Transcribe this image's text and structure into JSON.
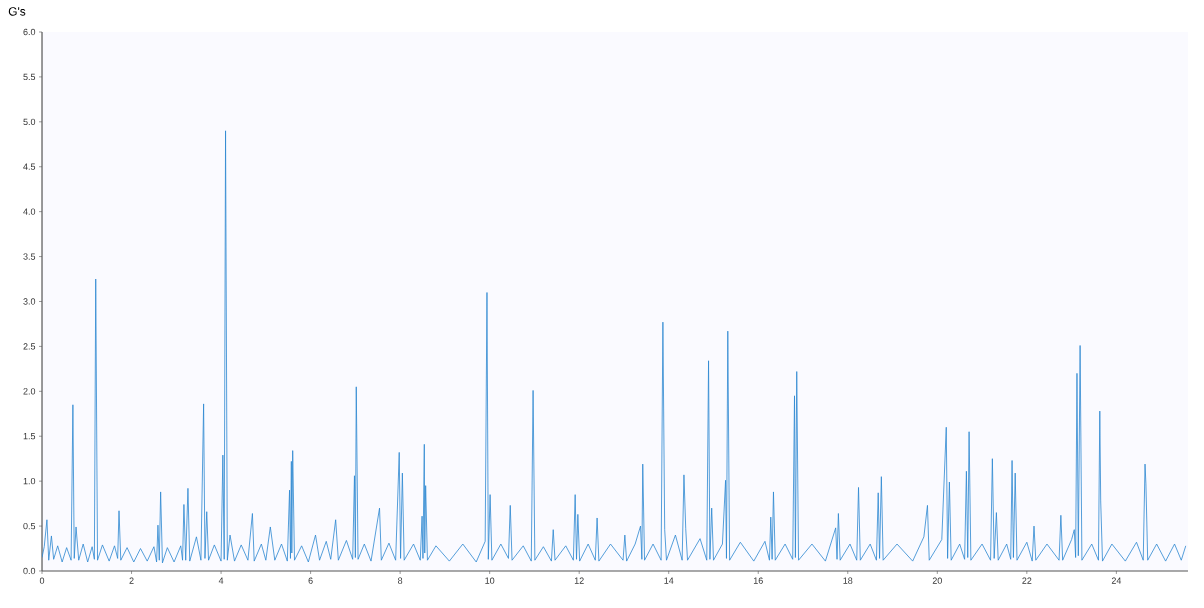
{
  "chart_data": {
    "type": "line",
    "ylabel": "G's",
    "color": "#2b87d1",
    "xlim": [
      0,
      25.6
    ],
    "ylim": [
      0,
      6
    ],
    "xticks": [
      0,
      2,
      4,
      6,
      8,
      10,
      12,
      14,
      16,
      18,
      20,
      22,
      24
    ],
    "yticks": [
      {
        "value": 0,
        "label": "0.0"
      },
      {
        "value": 0.5,
        "label": "0.5"
      },
      {
        "value": 1,
        "label": "1.0"
      },
      {
        "value": 1.5,
        "label": "1.5"
      },
      {
        "value": 2,
        "label": "2.0"
      },
      {
        "value": 2.5,
        "label": "2.5"
      },
      {
        "value": 3,
        "label": "3.0"
      },
      {
        "value": 3.5,
        "label": "3.5"
      },
      {
        "value": 4,
        "label": "4.0"
      },
      {
        "value": 4.5,
        "label": "4.5"
      },
      {
        "value": 5,
        "label": "5.0"
      },
      {
        "value": 5.5,
        "label": "5.5"
      },
      {
        "value": 6,
        "label": "6.0"
      }
    ],
    "x": [
      0,
      0.05,
      0.11,
      0.15,
      0.21,
      0.26,
      0.35,
      0.45,
      0.55,
      0.65,
      0.69,
      0.72,
      0.76,
      0.82,
      0.92,
      1.02,
      1.12,
      1.17,
      1.2,
      1.24,
      1.35,
      1.5,
      1.62,
      1.69,
      1.72,
      1.76,
      1.9,
      2.05,
      2.2,
      2.35,
      2.5,
      2.56,
      2.59,
      2.62,
      2.65,
      2.69,
      2.8,
      2.95,
      3.1,
      3.14,
      3.17,
      3.21,
      3.26,
      3.3,
      3.45,
      3.55,
      3.61,
      3.64,
      3.68,
      3.72,
      3.85,
      4.0,
      4.04,
      4.07,
      4.1,
      4.14,
      4.2,
      4.3,
      4.45,
      4.6,
      4.7,
      4.74,
      4.9,
      5.0,
      5.1,
      5.2,
      5.35,
      5.48,
      5.53,
      5.55,
      5.57,
      5.58,
      5.6,
      5.64,
      5.8,
      5.95,
      6.11,
      6.2,
      6.35,
      6.45,
      6.56,
      6.62,
      6.8,
      6.94,
      6.98,
      7.0,
      7.02,
      7.06,
      7.2,
      7.35,
      7.54,
      7.58,
      7.75,
      7.9,
      7.98,
      8.01,
      8.05,
      8.09,
      8.3,
      8.45,
      8.49,
      8.51,
      8.54,
      8.55,
      8.57,
      8.61,
      8.8,
      9.1,
      9.4,
      9.7,
      9.9,
      9.94,
      9.97,
      10.01,
      10.05,
      10.25,
      10.42,
      10.46,
      10.5,
      10.75,
      10.93,
      10.97,
      11.01,
      11.2,
      11.38,
      11.42,
      11.46,
      11.7,
      11.87,
      11.91,
      11.94,
      11.97,
      12.01,
      12.2,
      12.36,
      12.4,
      12.44,
      12.7,
      12.98,
      13.02,
      13.06,
      13.25,
      13.37,
      13.4,
      13.42,
      13.46,
      13.65,
      13.83,
      13.87,
      13.91,
      13.95,
      14.15,
      14.3,
      14.34,
      14.38,
      14.42,
      14.7,
      14.85,
      14.89,
      14.92,
      14.96,
      15.0,
      15.2,
      15.27,
      15.29,
      15.32,
      15.36,
      15.6,
      15.9,
      16.15,
      16.25,
      16.28,
      16.31,
      16.34,
      16.38,
      16.6,
      16.77,
      16.81,
      16.83,
      16.86,
      16.9,
      17.2,
      17.5,
      17.73,
      17.76,
      17.79,
      17.83,
      18.05,
      18.2,
      18.24,
      18.28,
      18.5,
      18.64,
      18.68,
      18.71,
      18.75,
      18.79,
      19.1,
      19.45,
      19.7,
      19.78,
      19.82,
      20.1,
      20.2,
      20.23,
      20.27,
      20.31,
      20.5,
      20.61,
      20.65,
      20.68,
      20.71,
      20.75,
      21.0,
      21.19,
      21.23,
      21.27,
      21.32,
      21.36,
      21.55,
      21.64,
      21.67,
      21.7,
      21.74,
      21.78,
      22.0,
      22.12,
      22.16,
      22.2,
      22.45,
      22.72,
      22.76,
      22.8,
      23.0,
      23.06,
      23.09,
      23.12,
      23.15,
      23.19,
      23.23,
      23.45,
      23.6,
      23.63,
      23.65,
      23.69,
      23.9,
      24.2,
      24.45,
      24.6,
      24.64,
      24.66,
      24.7,
      24.9,
      25.1,
      25.3,
      25.45,
      25.55
    ],
    "values": [
      0.15,
      0.27,
      0.57,
      0.12,
      0.39,
      0.13,
      0.28,
      0.1,
      0.26,
      0.12,
      1.85,
      0.14,
      0.49,
      0.12,
      0.3,
      0.1,
      0.27,
      0.13,
      3.25,
      0.12,
      0.29,
      0.11,
      0.28,
      0.14,
      0.67,
      0.12,
      0.26,
      0.1,
      0.25,
      0.11,
      0.27,
      0.1,
      0.51,
      0.12,
      0.88,
      0.09,
      0.26,
      0.1,
      0.28,
      0.12,
      0.74,
      0.12,
      0.92,
      0.11,
      0.38,
      0.12,
      1.86,
      0.14,
      0.66,
      0.12,
      0.29,
      0.11,
      1.29,
      0.13,
      4.9,
      0.12,
      0.4,
      0.11,
      0.29,
      0.12,
      0.64,
      0.11,
      0.3,
      0.12,
      0.49,
      0.12,
      0.3,
      0.11,
      0.9,
      0.14,
      1.22,
      0.2,
      1.34,
      0.12,
      0.28,
      0.1,
      0.4,
      0.12,
      0.33,
      0.13,
      0.57,
      0.12,
      0.34,
      0.13,
      1.06,
      0.15,
      2.05,
      0.13,
      0.3,
      0.11,
      0.7,
      0.12,
      0.31,
      0.12,
      1.32,
      0.14,
      1.09,
      0.12,
      0.3,
      0.12,
      0.61,
      0.14,
      1.41,
      0.2,
      0.95,
      0.12,
      0.28,
      0.11,
      0.3,
      0.1,
      0.33,
      3.1,
      0.13,
      0.85,
      0.12,
      0.3,
      0.14,
      0.73,
      0.12,
      0.28,
      0.11,
      2.01,
      0.12,
      0.27,
      0.11,
      0.46,
      0.12,
      0.28,
      0.12,
      0.85,
      0.13,
      0.63,
      0.11,
      0.3,
      0.12,
      0.59,
      0.11,
      0.3,
      0.12,
      0.4,
      0.11,
      0.3,
      0.5,
      0.13,
      1.19,
      0.12,
      0.3,
      0.12,
      2.77,
      0.46,
      0.12,
      0.4,
      0.12,
      1.07,
      0.47,
      0.12,
      0.36,
      0.12,
      2.34,
      0.13,
      0.7,
      0.12,
      0.3,
      1.01,
      0.14,
      2.67,
      0.12,
      0.32,
      0.11,
      0.33,
      0.12,
      0.6,
      0.13,
      0.88,
      0.12,
      0.3,
      0.13,
      1.95,
      0.15,
      2.22,
      0.12,
      0.3,
      0.11,
      0.48,
      0.13,
      0.64,
      0.12,
      0.3,
      0.12,
      0.93,
      0.12,
      0.3,
      0.12,
      0.87,
      0.14,
      1.05,
      0.12,
      0.3,
      0.11,
      0.38,
      0.73,
      0.12,
      0.35,
      1.6,
      0.14,
      0.99,
      0.12,
      0.3,
      0.13,
      1.11,
      0.15,
      1.55,
      0.12,
      0.3,
      0.12,
      1.25,
      0.14,
      0.65,
      0.12,
      0.3,
      0.13,
      1.23,
      0.15,
      1.09,
      0.12,
      0.32,
      0.11,
      0.5,
      0.12,
      0.3,
      0.12,
      0.62,
      0.12,
      0.35,
      0.46,
      0.15,
      2.2,
      0.17,
      2.51,
      0.12,
      0.3,
      0.12,
      1.78,
      0.78,
      0.11,
      0.3,
      0.11,
      0.32,
      0.12,
      1.19,
      0.97,
      0.12,
      0.3,
      0.11,
      0.3,
      0.12,
      0.28
    ]
  }
}
